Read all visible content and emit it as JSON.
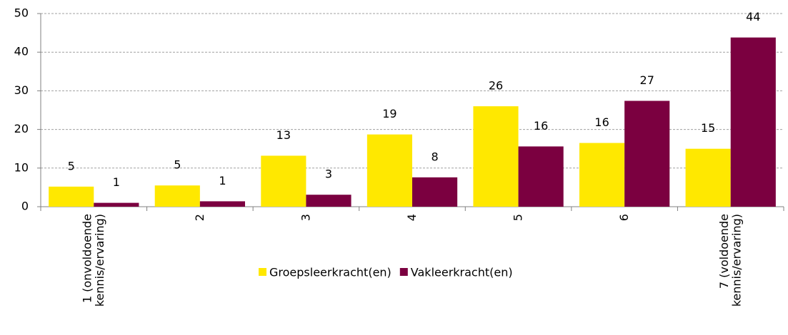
{
  "chart_data": {
    "type": "bar",
    "categories": [
      "1 (onvoldoende\nkennis/ervaring)",
      "2",
      "3",
      "4",
      "5",
      "6",
      "7 (voldoende\nkennis/ervaring)"
    ],
    "series": [
      {
        "name": "Groepsleerkracht(en)",
        "color": "#ffe800",
        "values": [
          5.2,
          5.5,
          13.2,
          18.7,
          26.0,
          16.5,
          15.0
        ],
        "value_labels": [
          "5",
          "5",
          "13",
          "19",
          "26",
          "16",
          "15"
        ]
      },
      {
        "name": "Vakleerkracht(en)",
        "color": "#7b0040",
        "values": [
          1.0,
          1.4,
          3.1,
          7.6,
          15.6,
          27.4,
          43.8
        ],
        "value_labels": [
          "1",
          "1",
          "3",
          "8",
          "16",
          "27",
          "44"
        ]
      }
    ],
    "ylim": [
      0,
      50
    ],
    "yticks": [
      0,
      10,
      20,
      30,
      40,
      50
    ],
    "grid": true,
    "legend": "bottom"
  }
}
